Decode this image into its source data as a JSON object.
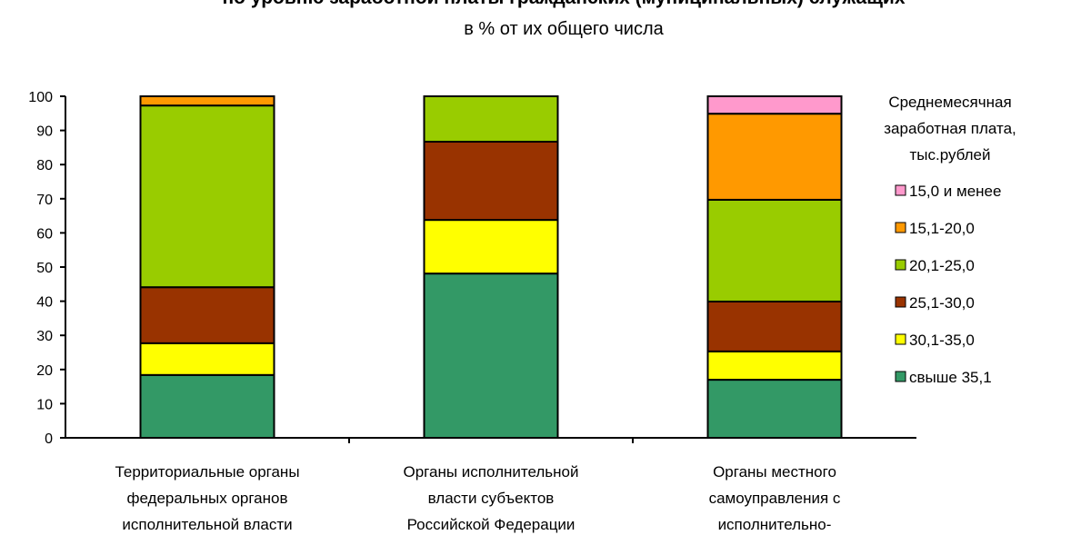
{
  "chart_data": {
    "type": "bar",
    "stacked": true,
    "title": "по уровню заработной платы гражданских (муниципальных) служащих",
    "subtitle": "в % от их общего числа",
    "xlabel": "",
    "ylabel": "",
    "ylim": [
      0,
      100
    ],
    "yticks": [
      "0",
      "10",
      "20",
      "30",
      "40",
      "50",
      "60",
      "70",
      "80",
      "90",
      "100"
    ],
    "categories": [
      [
        "Территориальные органы",
        "федеральных органов",
        "исполнительной власти"
      ],
      [
        "Органы исполнительной",
        "власти субъектов",
        "Российской Федерации"
      ],
      [
        "Органы местного",
        "самоуправления с",
        "исполнительно-"
      ]
    ],
    "legend_title": [
      "Среднемесячная",
      "заработная плата,",
      "тыс.рублей"
    ],
    "legend_position": "right",
    "series": [
      {
        "name": "свыше 35,1",
        "color": "#339966",
        "values": [
          18.4,
          48.1,
          17.0
        ]
      },
      {
        "name": "30,1-35,0",
        "color": "#FFFF00",
        "values": [
          9.3,
          15.7,
          8.3
        ]
      },
      {
        "name": "25,1-30,0",
        "color": "#993300",
        "values": [
          16.4,
          22.9,
          14.6
        ]
      },
      {
        "name": "20,1-25,0",
        "color": "#99CC00",
        "values": [
          53.2,
          13.3,
          29.8
        ]
      },
      {
        "name": "15,1-20,0",
        "color": "#FF9900",
        "values": [
          2.7,
          0,
          25.2
        ]
      },
      {
        "name": "15,0 и менее",
        "color": "#FF99CC",
        "values": [
          0,
          0,
          5.1
        ]
      }
    ]
  }
}
